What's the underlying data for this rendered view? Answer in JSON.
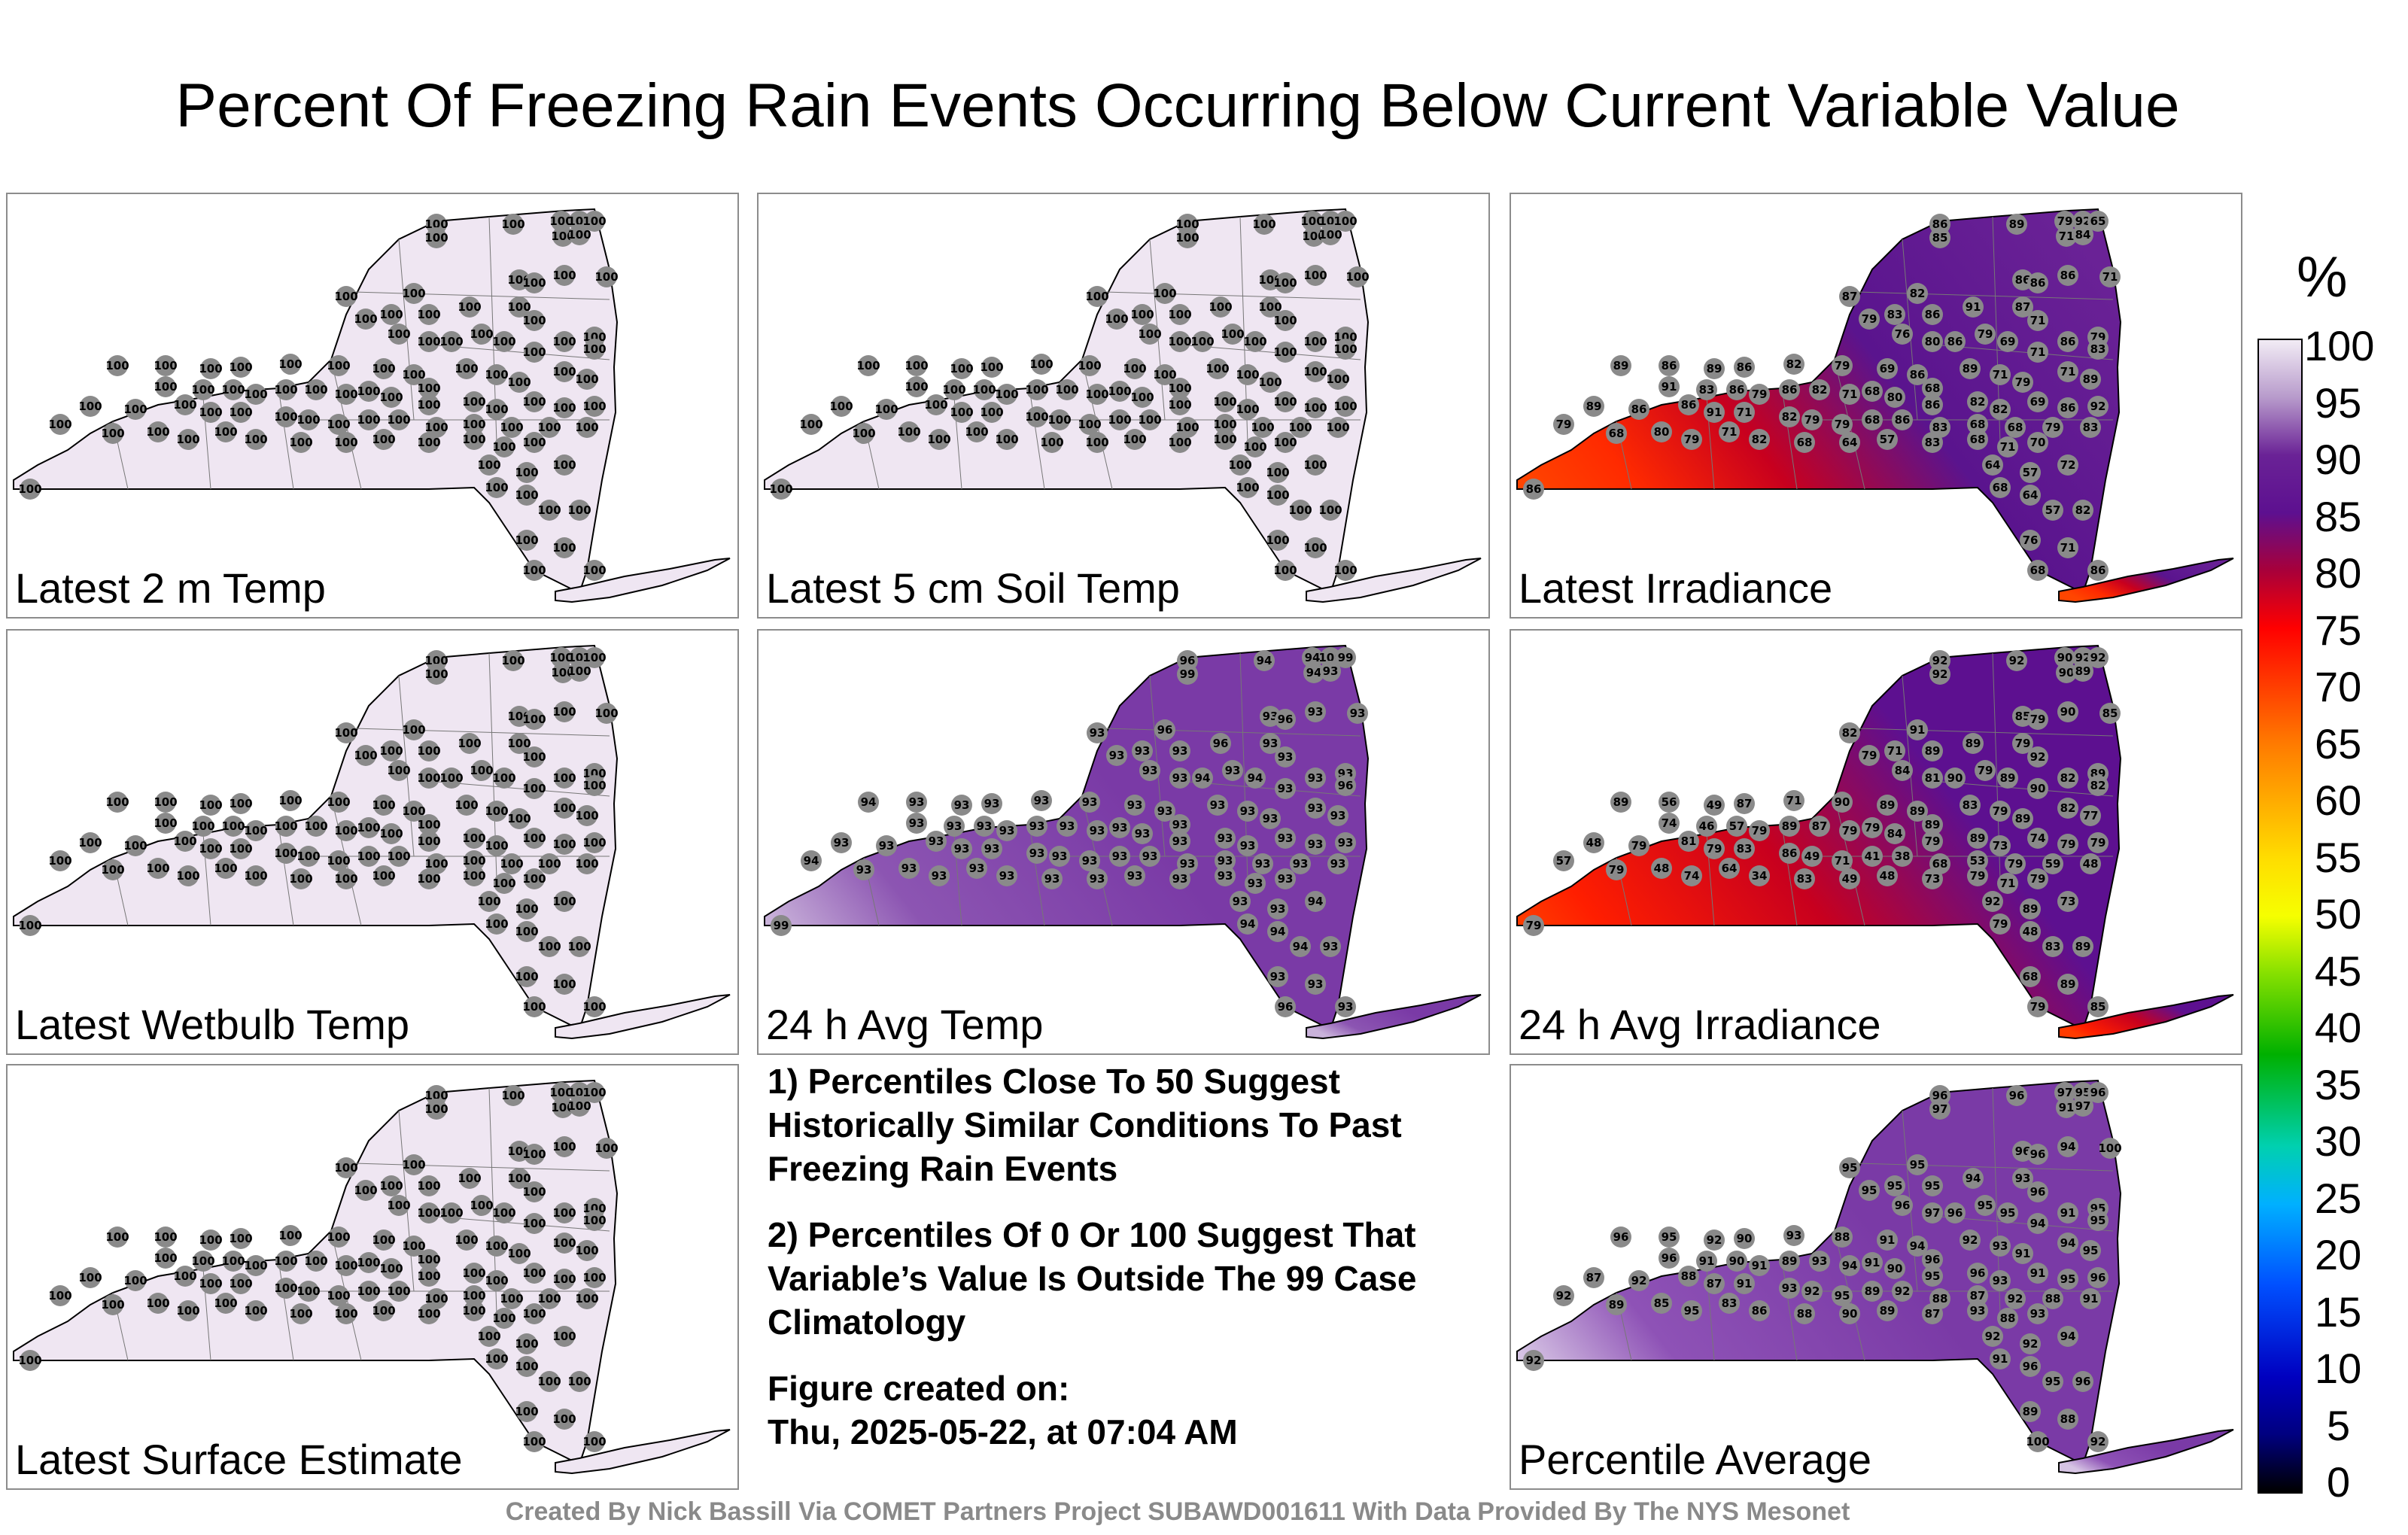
{
  "title": "Percent Of Freezing Rain Events Occurring Below Current Variable Value",
  "footer": "Created By Nick Bassill Via COMET Partners Project SUBAWD001611 With Data Provided By The NYS Mesonet",
  "colorbar": {
    "unit": "%",
    "ticks": [
      "100",
      "95",
      "90",
      "85",
      "80",
      "75",
      "70",
      "65",
      "60",
      "55",
      "50",
      "45",
      "40",
      "35",
      "30",
      "25",
      "20",
      "15",
      "10",
      "5",
      "0"
    ]
  },
  "notes": {
    "note1": "1) Percentiles Close To 50 Suggest Historically Similar Conditions To Past Freezing Rain Events",
    "note2": "2) Percentiles Of 0 Or 100 Suggest That Variable’s Value Is Outside The 99 Case Climatology",
    "created_label": "Figure created on:",
    "created_value": "Thu, 2025-05-22, at 07:04 AM"
  },
  "panels": [
    {
      "label": "Latest 2 m Temp",
      "fill": "#efe6f2",
      "base": 100,
      "values": [
        100,
        100,
        100,
        100,
        100,
        100,
        100,
        100,
        100,
        100,
        100,
        100,
        100,
        100,
        100,
        100,
        100,
        100,
        100,
        100,
        100,
        100,
        100,
        100,
        100,
        100,
        100,
        100,
        100,
        100,
        100,
        100,
        100,
        100,
        100,
        100,
        100,
        100,
        100,
        100,
        100,
        100,
        100,
        100,
        100,
        100,
        100,
        100,
        100,
        100,
        100,
        100,
        100,
        100,
        100,
        100,
        100,
        100,
        100,
        100,
        100,
        100,
        100,
        100,
        100,
        100,
        100,
        100,
        100,
        100,
        100,
        100,
        100,
        100,
        100,
        100,
        100,
        100,
        100,
        100,
        100,
        100,
        100,
        100,
        100,
        100,
        100,
        100,
        100,
        100,
        100,
        100,
        100,
        100,
        100,
        100,
        100,
        100
      ]
    },
    {
      "label": "Latest 5 cm Soil Temp",
      "fill": "#efe6f2",
      "base": 100,
      "values": [
        100,
        100,
        100,
        100,
        100,
        100,
        100,
        100,
        100,
        100,
        100,
        100,
        100,
        100,
        100,
        100,
        100,
        100,
        100,
        100,
        100,
        100,
        100,
        100,
        100,
        100,
        100,
        100,
        100,
        100,
        100,
        100,
        100,
        100,
        100,
        100,
        100,
        100,
        100,
        100,
        100,
        100,
        100,
        100,
        100,
        100,
        100,
        100,
        100,
        100,
        100,
        100,
        100,
        100,
        100,
        100,
        100,
        100,
        100,
        100,
        100,
        100,
        100,
        100,
        100,
        100,
        100,
        100,
        100,
        100,
        100,
        100,
        100,
        100,
        100,
        100,
        100,
        100,
        100,
        100,
        100,
        100,
        100,
        100,
        100,
        100,
        100,
        100,
        100,
        100,
        100,
        100,
        100,
        100,
        100,
        100,
        100,
        100
      ]
    },
    {
      "label": "Latest Irradiance",
      "fill": "gradient-irr",
      "values": [
        86,
        85,
        89,
        79,
        92,
        65,
        71,
        84,
        87,
        82,
        86,
        86,
        86,
        71,
        79,
        83,
        86,
        91,
        87,
        71,
        79,
        76,
        80,
        86,
        79,
        69,
        71,
        86,
        83,
        89,
        86,
        89,
        86,
        82,
        79,
        69,
        86,
        68,
        89,
        71,
        79,
        71,
        89,
        91,
        83,
        86,
        79,
        86,
        82,
        71,
        68,
        80,
        86,
        82,
        82,
        69,
        86,
        92,
        89,
        86,
        86,
        91,
        71,
        82,
        79,
        79,
        68,
        86,
        83,
        68,
        68,
        79,
        83,
        79,
        68,
        80,
        79,
        71,
        82,
        68,
        64,
        57,
        83,
        68,
        71,
        70,
        64,
        57,
        72,
        68,
        64,
        57,
        82,
        76,
        71,
        68,
        86,
        86
      ]
    },
    {
      "label": "Latest Wetbulb Temp",
      "fill": "#efe6f2",
      "base": 100,
      "values": [
        100,
        100,
        100,
        100,
        100,
        100,
        100,
        100,
        100,
        100,
        100,
        100,
        100,
        100,
        100,
        100,
        100,
        100,
        100,
        100,
        100,
        100,
        100,
        100,
        100,
        100,
        100,
        100,
        100,
        100,
        100,
        100,
        100,
        100,
        100,
        100,
        100,
        100,
        100,
        100,
        100,
        100,
        100,
        100,
        100,
        100,
        100,
        100,
        100,
        100,
        100,
        100,
        100,
        100,
        100,
        100,
        100,
        100,
        100,
        100,
        100,
        100,
        100,
        100,
        100,
        100,
        100,
        100,
        100,
        100,
        100,
        100,
        100,
        100,
        100,
        100,
        100,
        100,
        100,
        100,
        100,
        100,
        100,
        100,
        100,
        100,
        100,
        100,
        100,
        100,
        100,
        100,
        100,
        100,
        100,
        100,
        100,
        100
      ]
    },
    {
      "label": "24 h Avg Temp",
      "fill": "gradient-avgtemp",
      "values": [
        96,
        99,
        94,
        94,
        100,
        99,
        94,
        93,
        93,
        96,
        93,
        96,
        93,
        93,
        93,
        93,
        93,
        96,
        93,
        93,
        93,
        93,
        93,
        94,
        93,
        94,
        93,
        93,
        96,
        94,
        93,
        93,
        93,
        93,
        93,
        93,
        93,
        93,
        93,
        93,
        93,
        93,
        93,
        93,
        93,
        93,
        93,
        93,
        93,
        93,
        93,
        93,
        93,
        93,
        93,
        93,
        93,
        93,
        93,
        93,
        93,
        93,
        93,
        93,
        93,
        93,
        93,
        93,
        93,
        93,
        93,
        93,
        93,
        94,
        93,
        93,
        93,
        93,
        93,
        93,
        93,
        93,
        93,
        93,
        93,
        93,
        93,
        93,
        94,
        94,
        94,
        94,
        93,
        93,
        93,
        96,
        99,
        93
      ]
    },
    {
      "label": "24 h Avg Irradiance",
      "fill": "gradient-avgirr",
      "values": [
        92,
        92,
        92,
        90,
        92,
        92,
        90,
        89,
        82,
        91,
        85,
        79,
        90,
        85,
        79,
        71,
        89,
        89,
        79,
        92,
        89,
        84,
        81,
        90,
        79,
        89,
        90,
        82,
        82,
        89,
        56,
        49,
        87,
        71,
        90,
        89,
        89,
        89,
        83,
        79,
        89,
        82,
        77,
        74,
        46,
        57,
        79,
        89,
        87,
        79,
        79,
        84,
        79,
        89,
        73,
        74,
        79,
        79,
        48,
        79,
        81,
        79,
        83,
        86,
        49,
        71,
        41,
        38,
        68,
        53,
        79,
        59,
        48,
        57,
        79,
        48,
        74,
        64,
        34,
        83,
        49,
        48,
        73,
        79,
        71,
        79,
        92,
        89,
        73,
        79,
        48,
        83,
        89,
        68,
        89,
        79,
        79,
        85
      ]
    },
    {
      "label": "Latest Surface Estimate",
      "fill": "#efe6f2",
      "base": 100,
      "values": [
        100,
        100,
        100,
        100,
        100,
        100,
        100,
        100,
        100,
        100,
        100,
        100,
        100,
        100,
        100,
        100,
        100,
        100,
        100,
        100,
        100,
        100,
        100,
        100,
        100,
        100,
        100,
        100,
        100,
        100,
        100,
        100,
        100,
        100,
        100,
        100,
        100,
        100,
        100,
        100,
        100,
        100,
        100,
        100,
        100,
        100,
        100,
        100,
        100,
        100,
        100,
        100,
        100,
        100,
        100,
        100,
        100,
        100,
        100,
        100,
        100,
        100,
        100,
        100,
        100,
        100,
        100,
        100,
        100,
        100,
        100,
        100,
        100,
        100,
        100,
        100,
        100,
        100,
        100,
        100,
        100,
        100,
        100,
        100,
        100,
        100,
        100,
        100,
        100,
        100,
        100,
        100,
        100,
        100,
        100,
        100,
        100,
        100
      ]
    },
    {
      "label": "Percentile Average",
      "fill": "gradient-pavg",
      "values": [
        96,
        97,
        96,
        97,
        95,
        96,
        91,
        97,
        95,
        95,
        96,
        96,
        94,
        100,
        95,
        95,
        95,
        94,
        93,
        96,
        95,
        96,
        97,
        96,
        95,
        95,
        94,
        91,
        95,
        96,
        95,
        92,
        90,
        93,
        88,
        91,
        94,
        96,
        92,
        93,
        91,
        94,
        95,
        96,
        91,
        90,
        91,
        89,
        93,
        94,
        91,
        90,
        95,
        96,
        93,
        91,
        95,
        96,
        87,
        92,
        88,
        87,
        91,
        93,
        92,
        95,
        89,
        92,
        88,
        87,
        92,
        88,
        91,
        92,
        89,
        85,
        95,
        83,
        86,
        88,
        90,
        89,
        87,
        93,
        88,
        93,
        92,
        92,
        94,
        91,
        96,
        95,
        96,
        89,
        88,
        100,
        92,
        92
      ]
    }
  ]
}
